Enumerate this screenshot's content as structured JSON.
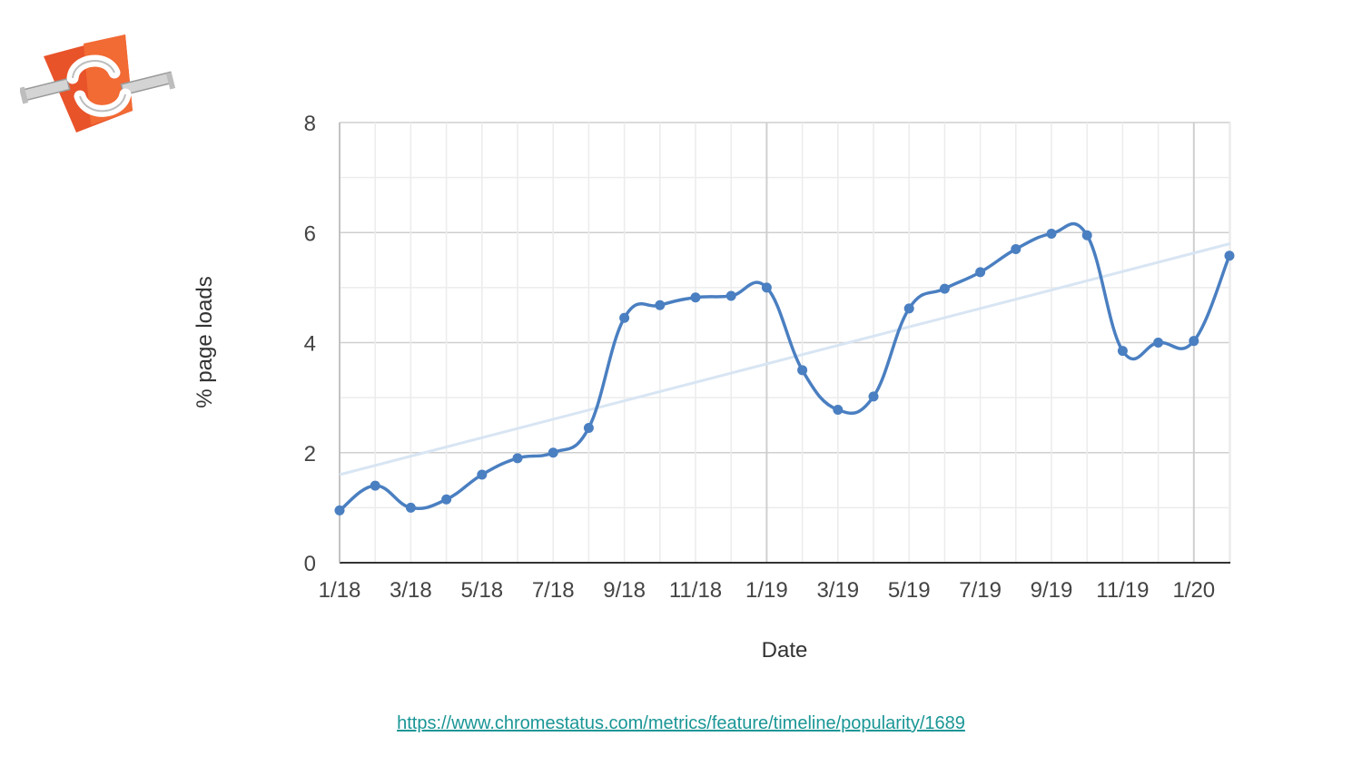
{
  "source_link": {
    "text": "https://www.chromestatus.com/metrics/feature/timeline/popularity/1689"
  },
  "colors": {
    "line": "#4a7fc1",
    "trend": "#d8e5f3",
    "grid": "#e0e0e0",
    "axis": "#333333",
    "link": "#1a9696",
    "logo_orange": "#e8532a"
  },
  "chart_data": {
    "type": "line",
    "xlabel": "Date",
    "ylabel": "% page loads",
    "ylim": [
      0,
      8
    ],
    "yticks": [
      0,
      2,
      4,
      6,
      8
    ],
    "xticks": [
      "1/18",
      "3/18",
      "5/18",
      "7/18",
      "9/18",
      "11/18",
      "1/19",
      "3/19",
      "5/19",
      "7/19",
      "9/19",
      "11/19",
      "1/20"
    ],
    "grid": true,
    "legend": "none",
    "x": [
      "1/18",
      "2/18",
      "3/18",
      "4/18",
      "5/18",
      "6/18",
      "7/18",
      "8/18",
      "9/18",
      "10/18",
      "11/18",
      "12/18",
      "1/19",
      "2/19",
      "3/19",
      "4/19",
      "5/19",
      "6/19",
      "7/19",
      "8/19",
      "9/19",
      "10/19",
      "11/19",
      "12/19",
      "1/20",
      "2/20"
    ],
    "series": [
      {
        "values": [
          0.95,
          1.4,
          1.0,
          1.15,
          1.6,
          1.9,
          2.0,
          2.45,
          4.45,
          4.68,
          4.82,
          4.85,
          5.0,
          3.5,
          2.78,
          3.02,
          4.62,
          4.98,
          5.28,
          5.7,
          5.98,
          5.95,
          3.85,
          4.0,
          4.03,
          5.58
        ]
      }
    ],
    "trendline": {
      "start": 1.6,
      "end": 5.8
    }
  }
}
